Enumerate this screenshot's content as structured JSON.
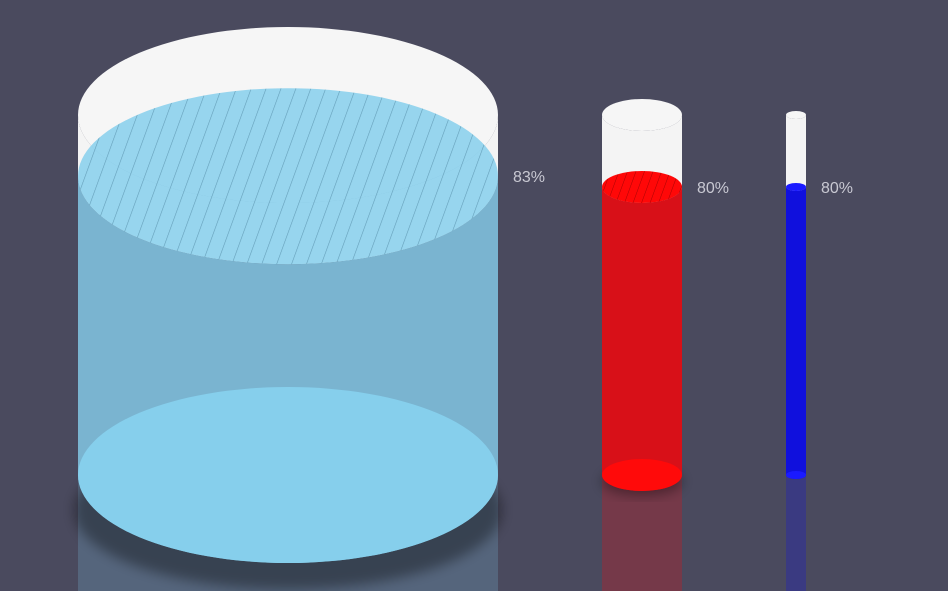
{
  "chart_data": {
    "type": "gauge-cylinder",
    "series": [
      {
        "value": 83,
        "label": "83%",
        "color": "#7fc9e8"
      },
      {
        "value": 80,
        "label": "80%",
        "color": "#e50f16"
      },
      {
        "value": 80,
        "label": "80%",
        "color": "#1111dd"
      }
    ],
    "max": 100,
    "empty_color": "#f4f4f4",
    "background": "#4a4a5e"
  }
}
